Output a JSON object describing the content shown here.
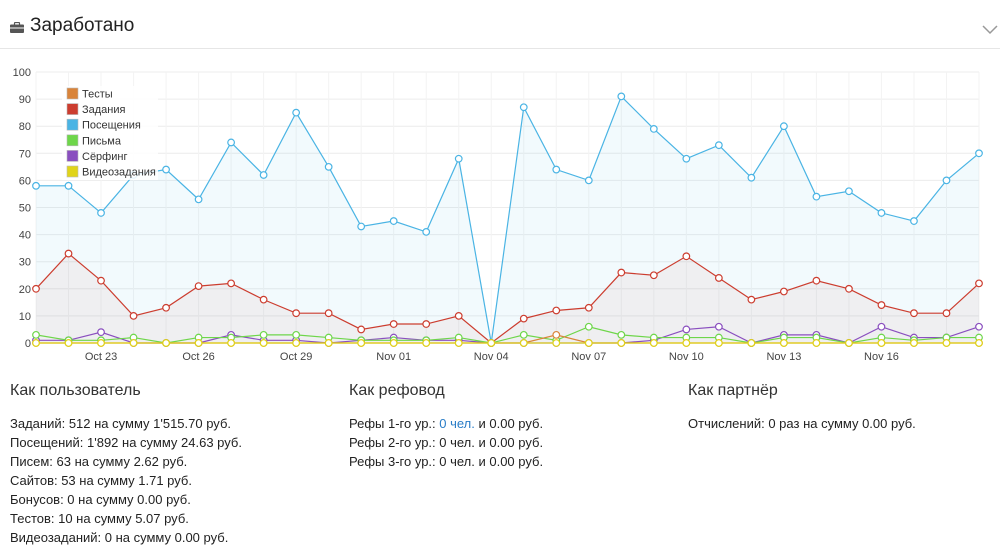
{
  "header": {
    "title": "Заработано",
    "icon": "briefcase-icon",
    "collapse_icon": "chevron-down-icon"
  },
  "chart_data": {
    "type": "line",
    "x_tick_labels": [
      "Oct 23",
      "Oct 26",
      "Oct 29",
      "Nov 01",
      "Nov 04",
      "Nov 07",
      "Nov 10",
      "Nov 13",
      "Nov 16"
    ],
    "x_tick_index": [
      2,
      5,
      8,
      11,
      14,
      17,
      20,
      23,
      26
    ],
    "y_ticks": [
      0,
      10,
      20,
      30,
      40,
      50,
      60,
      70,
      80,
      90,
      100
    ],
    "ylim": [
      0,
      100
    ],
    "legend_position": "top-left",
    "grid": true,
    "series": [
      {
        "name": "Тесты",
        "color": "#d9843a",
        "fill": false,
        "values": [
          0,
          0,
          0,
          0,
          0,
          0,
          0,
          0,
          0,
          0,
          0,
          0,
          0,
          0,
          0,
          0,
          3,
          0,
          0,
          0,
          0,
          0,
          0,
          0,
          0,
          0,
          0,
          0,
          0,
          0
        ]
      },
      {
        "name": "Задания",
        "color": "#cc3d2f",
        "fill": true,
        "fill_color": "rgba(204,61,47,0.06)",
        "values": [
          20,
          33,
          23,
          10,
          13,
          21,
          22,
          16,
          11,
          11,
          5,
          7,
          7,
          10,
          0,
          9,
          12,
          13,
          26,
          25,
          32,
          24,
          16,
          19,
          23,
          20,
          14,
          11,
          11,
          22
        ]
      },
      {
        "name": "Посещения",
        "color": "#4ab4e4",
        "fill": true,
        "fill_color": "rgba(74,180,228,0.07)",
        "values": [
          58,
          58,
          48,
          62,
          64,
          53,
          74,
          62,
          85,
          65,
          43,
          45,
          41,
          68,
          0,
          87,
          64,
          60,
          91,
          79,
          68,
          73,
          61,
          80,
          54,
          56,
          48,
          45,
          60,
          70
        ]
      },
      {
        "name": "Письма",
        "color": "#6ed64a",
        "fill": false,
        "values": [
          3,
          1,
          1,
          2,
          0,
          2,
          2,
          3,
          3,
          2,
          1,
          1,
          1,
          2,
          0,
          3,
          1,
          6,
          3,
          2,
          2,
          2,
          0,
          2,
          2,
          0,
          2,
          1,
          2,
          2
        ]
      },
      {
        "name": "Сёрфинг",
        "color": "#8a4fbf",
        "fill": false,
        "values": [
          1,
          1,
          4,
          0,
          0,
          0,
          3,
          1,
          1,
          0,
          1,
          2,
          1,
          1,
          0,
          0,
          0,
          0,
          0,
          1,
          5,
          6,
          0,
          3,
          3,
          0,
          6,
          2,
          2,
          6
        ]
      },
      {
        "name": "Видеозадания",
        "color": "#e0d41a",
        "fill": false,
        "values": [
          0,
          0,
          0,
          0,
          0,
          0,
          0,
          0,
          0,
          0,
          0,
          0,
          0,
          0,
          0,
          0,
          0,
          0,
          0,
          0,
          0,
          0,
          0,
          0,
          0,
          0,
          0,
          0,
          0,
          0
        ]
      }
    ]
  },
  "stats": {
    "user": {
      "title": "Как пользователь",
      "lines": [
        "Заданий: 512 на сумму 1'515.70 руб.",
        "Посещений: 1'892 на сумму 24.63 руб.",
        "Писем: 63 на сумму 2.62 руб.",
        "Сайтов: 53 на сумму 1.71 руб.",
        "Бонусов: 0 на сумму 0.00 руб.",
        "Тестов: 10 на сумму 5.07 руб.",
        "Видеозаданий: 0 на сумму 0.00 руб."
      ]
    },
    "referrer": {
      "title": "Как рефовод",
      "lines": [
        {
          "prefix": "Рефы 1-го ур.: ",
          "link": "0 чел.",
          "suffix": " и 0.00 руб."
        },
        {
          "prefix": "Рефы 2-го ур.: ",
          "link": "",
          "suffix": "0 чел. и 0.00 руб."
        },
        {
          "prefix": "Рефы 3-го ур.: ",
          "link": "",
          "suffix": "0 чел. и 0.00 руб."
        }
      ]
    },
    "partner": {
      "title": "Как партнёр",
      "lines": [
        "Отчислений: 0 раз на сумму 0.00 руб."
      ]
    }
  }
}
